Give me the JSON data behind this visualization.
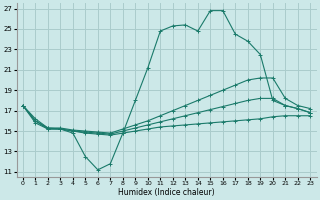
{
  "xlabel": "Humidex (Indice chaleur)",
  "bg_color": "#cce8e8",
  "grid_color": "#aacccc",
  "line_color": "#1a7a6a",
  "xlim": [
    -0.5,
    23.5
  ],
  "ylim": [
    10.5,
    27.5
  ],
  "xticks": [
    0,
    1,
    2,
    3,
    4,
    5,
    6,
    7,
    8,
    9,
    10,
    11,
    12,
    13,
    14,
    15,
    16,
    17,
    18,
    19,
    20,
    21,
    22,
    23
  ],
  "yticks": [
    11,
    13,
    15,
    17,
    19,
    21,
    23,
    25,
    27
  ],
  "line1_x": [
    0,
    1,
    2,
    3,
    4,
    5,
    6,
    7,
    8,
    9,
    10,
    11,
    12,
    13,
    14,
    15,
    16,
    17,
    18,
    19,
    20,
    21,
    22,
    23
  ],
  "line1_y": [
    17.5,
    16.0,
    15.2,
    15.2,
    14.8,
    12.5,
    11.2,
    11.8,
    14.8,
    18.0,
    21.2,
    24.8,
    25.3,
    25.4,
    24.8,
    26.8,
    26.8,
    24.5,
    23.8,
    22.5,
    18.0,
    17.5,
    17.2,
    16.8
  ],
  "line2_x": [
    0,
    1,
    2,
    3,
    4,
    5,
    6,
    7,
    8,
    9,
    10,
    11,
    12,
    13,
    14,
    15,
    16,
    17,
    18,
    19,
    20,
    21,
    22,
    23
  ],
  "line2_y": [
    17.5,
    16.2,
    15.3,
    15.3,
    15.1,
    15.0,
    14.9,
    14.8,
    15.2,
    15.6,
    16.0,
    16.5,
    17.0,
    17.5,
    18.0,
    18.5,
    19.0,
    19.5,
    20.0,
    20.2,
    20.2,
    18.2,
    17.5,
    17.2
  ],
  "line3_x": [
    0,
    1,
    2,
    3,
    4,
    5,
    6,
    7,
    8,
    9,
    10,
    11,
    12,
    13,
    14,
    15,
    16,
    17,
    18,
    19,
    20,
    21,
    22,
    23
  ],
  "line3_y": [
    17.5,
    16.0,
    15.3,
    15.2,
    15.0,
    14.9,
    14.8,
    14.7,
    15.0,
    15.3,
    15.6,
    15.9,
    16.2,
    16.5,
    16.8,
    17.1,
    17.4,
    17.7,
    18.0,
    18.2,
    18.2,
    17.5,
    17.2,
    16.8
  ],
  "line4_x": [
    0,
    1,
    2,
    3,
    4,
    5,
    6,
    7,
    8,
    9,
    10,
    11,
    12,
    13,
    14,
    15,
    16,
    17,
    18,
    19,
    20,
    21,
    22,
    23
  ],
  "line4_y": [
    17.5,
    15.8,
    15.2,
    15.2,
    15.0,
    14.8,
    14.7,
    14.6,
    14.8,
    15.0,
    15.2,
    15.4,
    15.5,
    15.6,
    15.7,
    15.8,
    15.9,
    16.0,
    16.1,
    16.2,
    16.4,
    16.5,
    16.5,
    16.5
  ]
}
